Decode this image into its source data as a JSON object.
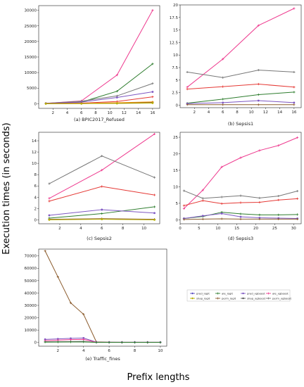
{
  "figure": {
    "ylabel": "Execution times (in seconds)",
    "xlabel": "Prefix lengths"
  },
  "legend": {
    "entries": [
      {
        "key": "pred_logit",
        "label": "pred_logit",
        "color": "#5b4fc2",
        "marker": "o"
      },
      {
        "key": "shap_logit",
        "label": "shap_logit",
        "color": "#b7b000",
        "marker": "o"
      },
      {
        "key": "ale_logit",
        "label": "ale_logit",
        "color": "#2e7d2e",
        "marker": "+"
      },
      {
        "key": "perm_logit",
        "label": "perm_logit",
        "color": "#8a5a2b",
        "marker": "+"
      },
      {
        "key": "pred_xgboost",
        "label": "pred_xgboost",
        "color": "#7e57c2",
        "marker": "o"
      },
      {
        "key": "shap_xgboost",
        "label": "shap_xgboost",
        "color": "#555555",
        "marker": "o"
      },
      {
        "key": "ale_xgboost",
        "label": "ale_xgboost",
        "color": "#ee3b8f",
        "marker": "+"
      },
      {
        "key": "perm_xgboost",
        "label": "perm_xgboost",
        "color": "#777777",
        "marker": "+"
      }
    ]
  },
  "chart_data": [
    {
      "type": "line",
      "caption": "(a) BPIC2017_Refused",
      "x": [
        1,
        6,
        11,
        16
      ],
      "ylim": [
        -1500,
        31500
      ],
      "xlim": [
        0,
        17
      ],
      "xticks": [
        2,
        4,
        6,
        8,
        10,
        12,
        14,
        16
      ],
      "yticks": [
        0,
        5000,
        10000,
        15000,
        20000,
        25000,
        30000
      ],
      "series": [
        {
          "color": "#ee3b8f",
          "marker": "+",
          "values": [
            100,
            900,
            9200,
            30000
          ]
        },
        {
          "color": "#2e7d2e",
          "marker": "+",
          "values": [
            100,
            500,
            4000,
            12800
          ]
        },
        {
          "color": "#777777",
          "marker": "+",
          "values": [
            150,
            800,
            2500,
            6500
          ]
        },
        {
          "color": "#7e57c2",
          "marker": "o",
          "values": [
            100,
            500,
            2000,
            3800
          ]
        },
        {
          "color": "#e53935",
          "marker": "+",
          "values": [
            50,
            200,
            700,
            2200
          ]
        },
        {
          "color": "#ff9800",
          "marker": "+",
          "values": [
            20,
            100,
            300,
            600
          ]
        },
        {
          "color": "#8a5a2b",
          "marker": "+",
          "values": [
            10,
            60,
            150,
            400
          ]
        },
        {
          "color": "#b7b000",
          "marker": "o",
          "values": [
            5,
            30,
            80,
            200
          ]
        }
      ]
    },
    {
      "type": "line",
      "caption": "(b) Sepsis1",
      "x": [
        1,
        6,
        11,
        16
      ],
      "ylim": [
        -0.5,
        20
      ],
      "xlim": [
        0,
        17
      ],
      "xticks": [
        2,
        4,
        6,
        8,
        10,
        12,
        14,
        16
      ],
      "yticks": [
        0.0,
        2.5,
        5.0,
        7.5,
        10.0,
        12.5,
        15.0,
        17.5,
        20.0
      ],
      "series": [
        {
          "color": "#ee3b8f",
          "marker": "+",
          "values": [
            3.6,
            9.2,
            15.9,
            19.3
          ]
        },
        {
          "color": "#777777",
          "marker": "+",
          "values": [
            6.6,
            5.5,
            7.0,
            6.6
          ]
        },
        {
          "color": "#e53935",
          "marker": "+",
          "values": [
            3.2,
            3.7,
            4.2,
            3.6
          ]
        },
        {
          "color": "#2e7d2e",
          "marker": "+",
          "values": [
            0.4,
            1.2,
            2.1,
            2.6
          ]
        },
        {
          "color": "#7e57c2",
          "marker": "o",
          "values": [
            0.3,
            0.5,
            0.9,
            0.5
          ]
        },
        {
          "color": "#8a5a2b",
          "marker": "+",
          "values": [
            0.1,
            0.1,
            0.1,
            0.1
          ]
        }
      ]
    },
    {
      "type": "line",
      "caption": "(c) Sepsis2",
      "x": [
        1,
        6,
        11
      ],
      "ylim": [
        -0.7,
        15.5
      ],
      "xlim": [
        0,
        11.5
      ],
      "xticks": [
        2,
        4,
        6,
        8,
        10
      ],
      "yticks": [
        0,
        2,
        4,
        6,
        8,
        10,
        12,
        14
      ],
      "series": [
        {
          "color": "#ee3b8f",
          "marker": "+",
          "values": [
            3.8,
            8.8,
            15.2
          ]
        },
        {
          "color": "#777777",
          "marker": "+",
          "values": [
            6.4,
            11.3,
            7.5
          ]
        },
        {
          "color": "#e53935",
          "marker": "+",
          "values": [
            3.3,
            5.9,
            4.4
          ]
        },
        {
          "color": "#2e7d2e",
          "marker": "+",
          "values": [
            0.3,
            1.1,
            2.3
          ]
        },
        {
          "color": "#7e57c2",
          "marker": "o",
          "values": [
            0.8,
            1.8,
            1.2
          ]
        },
        {
          "color": "#8a5a2b",
          "marker": "+",
          "values": [
            0.1,
            0.2,
            0.1
          ]
        },
        {
          "color": "#b7b000",
          "marker": "o",
          "values": [
            0.0,
            0.1,
            0.0
          ]
        }
      ]
    },
    {
      "type": "line",
      "caption": "(d) Sepsis3",
      "x": [
        1,
        6,
        11,
        16,
        21,
        26,
        31
      ],
      "ylim": [
        -1.2,
        26.5
      ],
      "xlim": [
        0,
        32
      ],
      "xticks": [
        0,
        5,
        10,
        15,
        20,
        25,
        30
      ],
      "yticks": [
        0,
        5,
        10,
        15,
        20,
        25
      ],
      "series": [
        {
          "color": "#ee3b8f",
          "marker": "+",
          "values": [
            3.4,
            9.0,
            16.0,
            18.8,
            21.0,
            22.5,
            24.9
          ]
        },
        {
          "color": "#777777",
          "marker": "+",
          "values": [
            8.8,
            6.5,
            6.9,
            7.3,
            6.6,
            7.2,
            8.7
          ]
        },
        {
          "color": "#e53935",
          "marker": "+",
          "values": [
            4.3,
            5.8,
            4.9,
            5.2,
            5.3,
            6.0,
            6.4
          ]
        },
        {
          "color": "#2e7d2e",
          "marker": "+",
          "values": [
            0.4,
            1.0,
            2.3,
            1.8,
            1.5,
            1.5,
            1.6
          ]
        },
        {
          "color": "#7e57c2",
          "marker": "o",
          "values": [
            0.4,
            1.2,
            1.9,
            0.9,
            0.6,
            0.5,
            0.4
          ]
        },
        {
          "color": "#8a5a2b",
          "marker": "+",
          "values": [
            0.1,
            0.2,
            0.3,
            0.2,
            0.2,
            0.2,
            0.2
          ]
        }
      ]
    },
    {
      "type": "line",
      "caption": "(e) Traffic_fines",
      "x": [
        1,
        2,
        3,
        4,
        5,
        6,
        7,
        8,
        9,
        10
      ],
      "ylim": [
        -3000,
        75500
      ],
      "xlim": [
        0.5,
        10.5
      ],
      "xticks": [
        2,
        4,
        6,
        8,
        10
      ],
      "yticks": [
        0,
        10000,
        20000,
        30000,
        40000,
        50000,
        60000,
        70000
      ],
      "series": [
        {
          "color": "#8a5a2b",
          "marker": "+",
          "values": [
            74000,
            53000,
            32000,
            22800,
            500,
            300,
            200,
            200,
            200,
            200
          ]
        },
        {
          "color": "#7e57c2",
          "marker": "o",
          "values": [
            2500,
            2900,
            3300,
            3600,
            300,
            200,
            200,
            200,
            200,
            200
          ]
        },
        {
          "color": "#ee3b8f",
          "marker": "+",
          "values": [
            1500,
            1900,
            2300,
            2500,
            200,
            150,
            150,
            150,
            150,
            150
          ]
        },
        {
          "color": "#777777",
          "marker": "+",
          "values": [
            600,
            700,
            800,
            900,
            100,
            100,
            100,
            100,
            100,
            100
          ]
        },
        {
          "color": "#2e7d2e",
          "marker": "+",
          "values": [
            300,
            350,
            400,
            450,
            50,
            50,
            50,
            50,
            50,
            50
          ]
        }
      ]
    }
  ]
}
